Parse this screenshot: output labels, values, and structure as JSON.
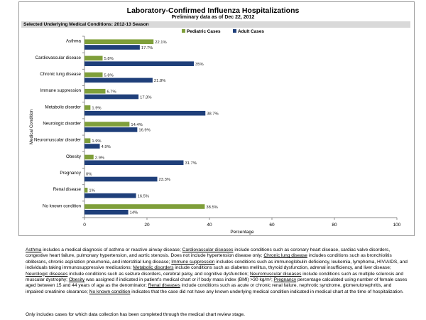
{
  "chart_data": {
    "type": "bar",
    "orientation": "horizontal",
    "title": "Laboratory-Confirmed Influenza Hospitalizations",
    "subtitle": "Preliminary data as of Dec 22, 2012",
    "panel_title": "Selected Underlying Medical Conditions: 2012-13 Season",
    "xlabel": "Percentage",
    "ylabel": "Medical Condition",
    "xlim": [
      0,
      100
    ],
    "xticks": [
      0,
      20,
      40,
      60,
      80,
      100
    ],
    "legend_position": "top-center",
    "categories": [
      "Asthma",
      "Cardiovascular disease",
      "Chronic lung disease",
      "Immune suppression",
      "Metabolic disorder",
      "Neurologic disorder",
      "Neuromuscular disorder",
      "Obesity",
      "Pregnancy",
      "Renal disease",
      "No known condition"
    ],
    "series": [
      {
        "name": "Pediatric Cases",
        "color": "#7f9f3a",
        "values": [
          22.1,
          5.8,
          5.8,
          6.7,
          1.9,
          14.4,
          1.9,
          2.9,
          0,
          1,
          38.5
        ],
        "labels": [
          "22.1%",
          "5.8%",
          "5.8%",
          "6.7%",
          "1.9%",
          "14.4%",
          "1.9%",
          "2.9%",
          "0%",
          "1%",
          "38.5%"
        ]
      },
      {
        "name": "Adult Cases",
        "color": "#1f3f7a",
        "values": [
          17.7,
          35,
          21.8,
          17.3,
          38.7,
          16.9,
          4.9,
          31.7,
          23.3,
          16.5,
          14
        ],
        "labels": [
          "17.7%",
          "35%",
          "21.8%",
          "17.3%",
          "38.7%",
          "16.9%",
          "4.9%",
          "31.7%",
          "23.3%",
          "16.5%",
          "14%"
        ]
      }
    ]
  },
  "description": [
    {
      "t": "Asthma",
      "u": true
    },
    {
      "t": " includes a medical diagnosis of asthma or reactive airway disease; "
    },
    {
      "t": "Cardiovascular diseases",
      "u": true
    },
    {
      "t": " include conditions such as coronary heart disease, cardiac valve disorders, congestive heart failure, pulmonary hypertension, and aortic stenosis.  Does not include hypertension disease only;  "
    },
    {
      "t": "Chronic lung disease",
      "u": true
    },
    {
      "t": " includes conditions such as bronchiolitis obliterans, chronic aspiration pneumonia, and interstitial lung disease;  "
    },
    {
      "t": "Immune suppression",
      "u": true
    },
    {
      "t": " includes conditions such as immunoglobulin deficiency, leukemia, lymphoma, HIV/AIDS, and individuals taking immunosuppressive medications;  "
    },
    {
      "t": "Metabolic disorders",
      "u": true
    },
    {
      "t": " include conditions such as diabetes mellitus, thyroid dysfunction, adrenal insufficiency, and liver disease;  "
    },
    {
      "t": "Neurologic diseases",
      "u": true
    },
    {
      "t": " include conditions such as seizure disorders, cerebral palsy, and cognitive dysfunction;  "
    },
    {
      "t": "Neuromuscular diseases",
      "u": true
    },
    {
      "t": " include conditions such as multiple sclerosis and muscular dystrophy;  "
    },
    {
      "t": "Obesity",
      "u": true
    },
    {
      "t": " was assigned if indicated in patient's medical chart or if body mass index (BMI) >30 kg/m²;  "
    },
    {
      "t": "Pregnancy",
      "u": true
    },
    {
      "t": " percentage calculated using number of female cases aged between 15 and 44 years of age as the denominator;  "
    },
    {
      "t": "Renal diseases",
      "u": true
    },
    {
      "t": " include conditions such as acute or chronic renal failure, nephrotic syndrome, glomerulonephritis, and impaired creatinine clearance;  "
    },
    {
      "t": "No known condition",
      "u": true
    },
    {
      "t": " indicates that the case did not have any known underlying medical condition indicated in medical chart at the time of hospitalization."
    }
  ],
  "footnote": "Only includes cases for which data collection has been completed through the medical chart review stage."
}
